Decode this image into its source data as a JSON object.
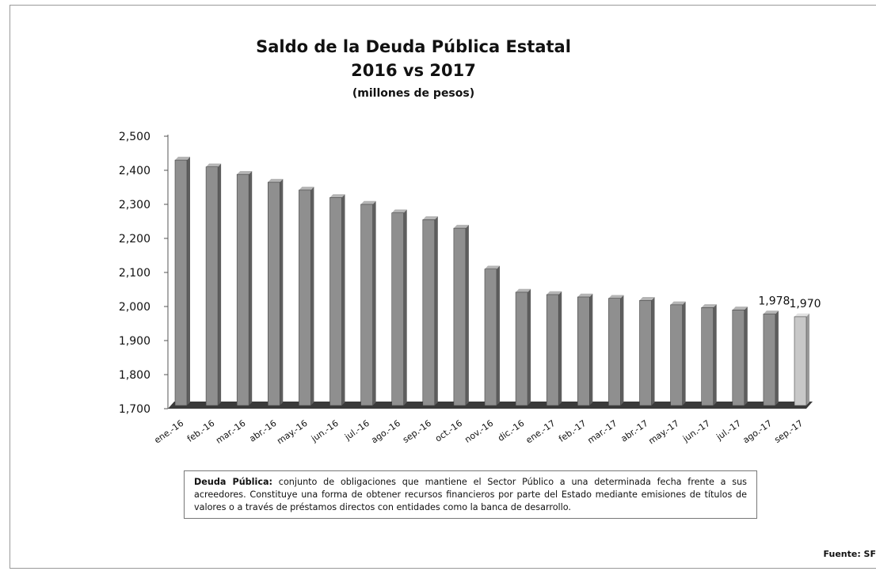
{
  "chart_data": {
    "type": "bar",
    "title": "Saldo de la Deuda Pública Estatal",
    "title_line2": "2016 vs 2017",
    "subtitle": "(millones de pesos)",
    "categories": [
      "ene.-16",
      "feb.-16",
      "mar.-16",
      "abr.-16",
      "may.-16",
      "jun.-16",
      "jul.-16",
      "ago.-16",
      "sep.-16",
      "oct.-16",
      "nov.-16",
      "dic.-16",
      "ene.-17",
      "feb.-17",
      "mar.-17",
      "abr.-17",
      "may.-17",
      "jun.-17",
      "jul.-17",
      "ago.-17",
      "sep.-17"
    ],
    "values": [
      2430,
      2410,
      2388,
      2365,
      2342,
      2320,
      2300,
      2275,
      2255,
      2230,
      2110,
      2042,
      2035,
      2028,
      2024,
      2018,
      2005,
      1997,
      1990,
      1978,
      1970
    ],
    "ylim": [
      1700,
      2500
    ],
    "yticks": [
      "1,700",
      "1,800",
      "1,900",
      "2,000",
      "2,100",
      "2,200",
      "2,300",
      "2,400",
      "2,500"
    ],
    "data_labels": [
      {
        "index": 19,
        "text": "1,978"
      },
      {
        "index": 20,
        "text": "1,970"
      }
    ],
    "colors": {
      "bar": "#8f8f8f",
      "bar_highlight": "#c8c8c8",
      "floor": "#3a3a3a"
    },
    "grid": false,
    "style": "3d-column"
  },
  "note": {
    "term": "Deuda Pública:",
    "text": "conjunto de obligaciones que mantiene el Sector Público a una determinada fecha frente a sus acreedores. Constituye una forma de obtener recursos financieros por parte del Estado mediante emisiones de títulos de valores o a través de préstamos directos con entidades como la banca de desarrollo."
  },
  "source": "Fuente: SF"
}
